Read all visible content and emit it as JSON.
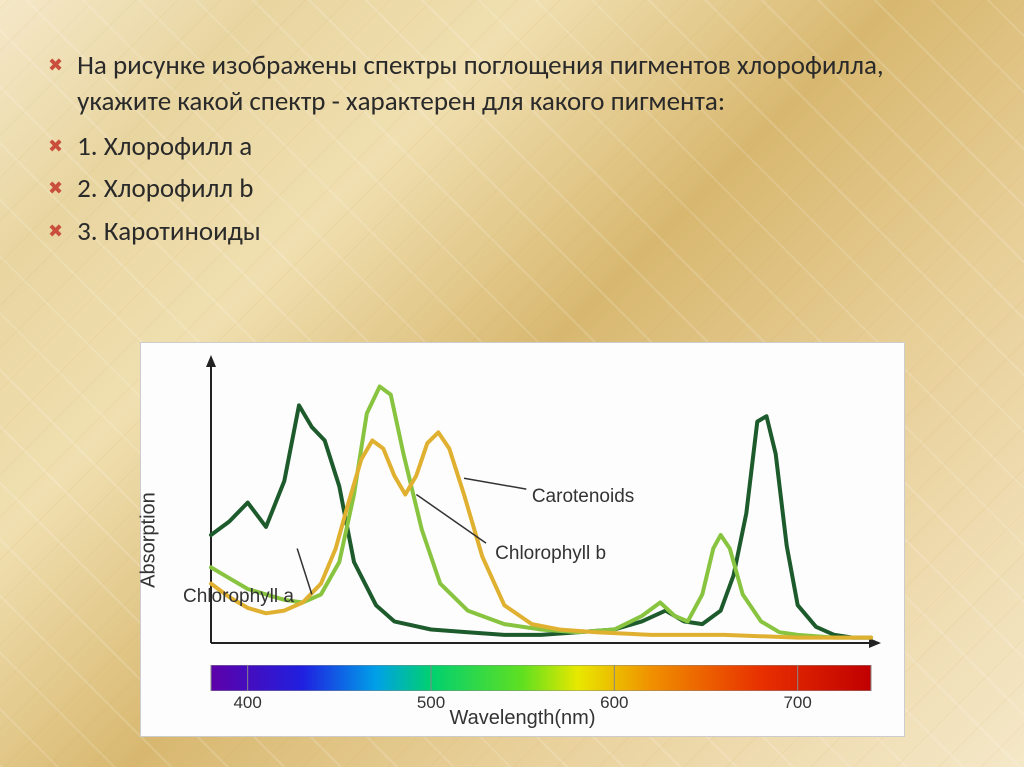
{
  "slide": {
    "question": "На рисунке изображены спектры поглощения пигментов хлорофилла, укажите какой спектр - характерен для какого пигмента:",
    "items": [
      "1. Хлорофилл a",
      "2. Хлорофилл b",
      "3. Каротиноиды"
    ]
  },
  "chart": {
    "type": "line",
    "ylabel": "Absorption",
    "xlabel": "Wavelength(nm)",
    "xlim": [
      380,
      740
    ],
    "ylim": [
      0,
      100
    ],
    "xticks": [
      400,
      500,
      600,
      700
    ],
    "background_color": "#fdfdfd",
    "axis_color": "#222222",
    "axis_arrow": true,
    "series": [
      {
        "name": "Chlorophyll a",
        "label": "Chlorophyll a",
        "color": "#1d5b2c",
        "width": 4,
        "label_pos": {
          "x": 395,
          "y": 13
        },
        "leader": [
          [
            435,
            18
          ],
          [
            427,
            35
          ]
        ],
        "data": [
          [
            380,
            40
          ],
          [
            390,
            45
          ],
          [
            400,
            52
          ],
          [
            410,
            43
          ],
          [
            420,
            60
          ],
          [
            428,
            88
          ],
          [
            435,
            80
          ],
          [
            442,
            75
          ],
          [
            450,
            58
          ],
          [
            458,
            30
          ],
          [
            470,
            14
          ],
          [
            480,
            8
          ],
          [
            500,
            5
          ],
          [
            520,
            4
          ],
          [
            540,
            3
          ],
          [
            560,
            3
          ],
          [
            580,
            4
          ],
          [
            600,
            5
          ],
          [
            615,
            8
          ],
          [
            628,
            12
          ],
          [
            638,
            8
          ],
          [
            648,
            7
          ],
          [
            658,
            12
          ],
          [
            665,
            25
          ],
          [
            672,
            48
          ],
          [
            678,
            82
          ],
          [
            683,
            84
          ],
          [
            688,
            70
          ],
          [
            694,
            36
          ],
          [
            700,
            14
          ],
          [
            710,
            6
          ],
          [
            720,
            3
          ],
          [
            730,
            2
          ],
          [
            740,
            2
          ]
        ]
      },
      {
        "name": "Chlorophyll b",
        "label": "Chlorophyll b",
        "color": "#88c440",
        "width": 4,
        "label_pos": {
          "x": 535,
          "y": 33
        },
        "leader": [
          [
            530,
            37
          ],
          [
            492,
            55
          ]
        ],
        "data": [
          [
            380,
            28
          ],
          [
            390,
            24
          ],
          [
            400,
            20
          ],
          [
            410,
            18
          ],
          [
            420,
            16
          ],
          [
            430,
            15
          ],
          [
            440,
            18
          ],
          [
            450,
            30
          ],
          [
            458,
            55
          ],
          [
            465,
            85
          ],
          [
            472,
            95
          ],
          [
            478,
            92
          ],
          [
            485,
            70
          ],
          [
            495,
            42
          ],
          [
            505,
            22
          ],
          [
            520,
            12
          ],
          [
            540,
            7
          ],
          [
            560,
            5
          ],
          [
            580,
            4
          ],
          [
            600,
            5
          ],
          [
            615,
            10
          ],
          [
            625,
            15
          ],
          [
            633,
            10
          ],
          [
            640,
            8
          ],
          [
            648,
            18
          ],
          [
            654,
            35
          ],
          [
            658,
            40
          ],
          [
            663,
            35
          ],
          [
            670,
            18
          ],
          [
            680,
            8
          ],
          [
            690,
            4
          ],
          [
            700,
            3
          ],
          [
            720,
            2
          ],
          [
            740,
            2
          ]
        ]
      },
      {
        "name": "Carotenoids",
        "label": "Carotenoids",
        "color": "#e0b030",
        "width": 4,
        "label_pos": {
          "x": 555,
          "y": 54
        },
        "leader": [
          [
            552,
            57
          ],
          [
            518,
            61
          ]
        ],
        "data": [
          [
            380,
            22
          ],
          [
            390,
            17
          ],
          [
            400,
            13
          ],
          [
            410,
            11
          ],
          [
            420,
            12
          ],
          [
            430,
            15
          ],
          [
            440,
            22
          ],
          [
            448,
            35
          ],
          [
            455,
            52
          ],
          [
            462,
            68
          ],
          [
            468,
            75
          ],
          [
            474,
            72
          ],
          [
            480,
            62
          ],
          [
            486,
            55
          ],
          [
            492,
            62
          ],
          [
            498,
            74
          ],
          [
            504,
            78
          ],
          [
            510,
            72
          ],
          [
            518,
            55
          ],
          [
            528,
            32
          ],
          [
            540,
            14
          ],
          [
            555,
            7
          ],
          [
            570,
            5
          ],
          [
            590,
            4
          ],
          [
            620,
            3
          ],
          [
            660,
            3
          ],
          [
            700,
            2
          ],
          [
            740,
            2
          ]
        ]
      }
    ],
    "spectrum_stops": [
      {
        "nm": 380,
        "color": "#5d00a8"
      },
      {
        "nm": 430,
        "color": "#2020e0"
      },
      {
        "nm": 470,
        "color": "#00a0e8"
      },
      {
        "nm": 500,
        "color": "#00d070"
      },
      {
        "nm": 550,
        "color": "#60e020"
      },
      {
        "nm": 580,
        "color": "#e8e800"
      },
      {
        "nm": 620,
        "color": "#f09000"
      },
      {
        "nm": 680,
        "color": "#e83000"
      },
      {
        "nm": 740,
        "color": "#c00000"
      }
    ]
  }
}
